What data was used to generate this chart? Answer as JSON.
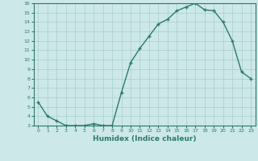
{
  "xlabel": "Humidex (Indice chaleur)",
  "x": [
    0,
    1,
    2,
    3,
    4,
    5,
    6,
    7,
    8,
    9,
    10,
    11,
    12,
    13,
    14,
    15,
    16,
    17,
    18,
    19,
    20,
    21,
    22,
    23
  ],
  "y": [
    5.5,
    4.0,
    3.5,
    3.0,
    3.0,
    3.0,
    3.2,
    3.0,
    3.0,
    6.5,
    9.7,
    11.2,
    12.5,
    13.8,
    14.3,
    15.2,
    15.6,
    16.0,
    15.3,
    15.2,
    14.0,
    12.0,
    8.7,
    8.0
  ],
  "line_color": "#2d7a6e",
  "marker": "+",
  "markersize": 3,
  "linewidth": 1.0,
  "bg_color": "#cce8e8",
  "grid_color": "#aacccc",
  "tick_color": "#2d7a6e",
  "label_color": "#2d7a6e",
  "ylim": [
    3,
    16
  ],
  "xlim": [
    -0.5,
    23.5
  ],
  "yticks": [
    3,
    4,
    5,
    6,
    7,
    8,
    9,
    10,
    11,
    12,
    13,
    14,
    15,
    16
  ],
  "xticks": [
    0,
    1,
    2,
    3,
    4,
    5,
    6,
    7,
    8,
    9,
    10,
    11,
    12,
    13,
    14,
    15,
    16,
    17,
    18,
    19,
    20,
    21,
    22,
    23
  ]
}
